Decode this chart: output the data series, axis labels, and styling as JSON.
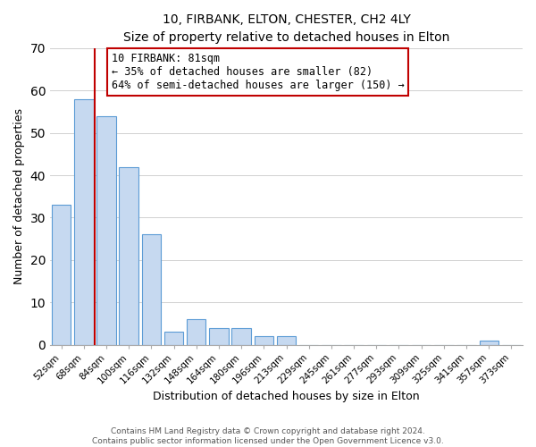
{
  "title": "10, FIRBANK, ELTON, CHESTER, CH2 4LY",
  "subtitle": "Size of property relative to detached houses in Elton",
  "xlabel": "Distribution of detached houses by size in Elton",
  "ylabel": "Number of detached properties",
  "bar_labels": [
    "52sqm",
    "68sqm",
    "84sqm",
    "100sqm",
    "116sqm",
    "132sqm",
    "148sqm",
    "164sqm",
    "180sqm",
    "196sqm",
    "213sqm",
    "229sqm",
    "245sqm",
    "261sqm",
    "277sqm",
    "293sqm",
    "309sqm",
    "325sqm",
    "341sqm",
    "357sqm",
    "373sqm"
  ],
  "bar_heights": [
    33,
    58,
    54,
    42,
    26,
    3,
    6,
    4,
    4,
    2,
    2,
    0,
    0,
    0,
    0,
    0,
    0,
    0,
    0,
    1,
    0
  ],
  "bar_color": "#c6d9f0",
  "bar_edge_color": "#5b9bd5",
  "vline_color": "#c00000",
  "annotation_title": "10 FIRBANK: 81sqm",
  "annotation_line1": "← 35% of detached houses are smaller (82)",
  "annotation_line2": "64% of semi-detached houses are larger (150) →",
  "annotation_box_edge": "#c00000",
  "ylim": [
    0,
    70
  ],
  "yticks": [
    0,
    10,
    20,
    30,
    40,
    50,
    60,
    70
  ],
  "footer1": "Contains HM Land Registry data © Crown copyright and database right 2024.",
  "footer2": "Contains public sector information licensed under the Open Government Licence v3.0.",
  "title_fontsize": 10,
  "subtitle_fontsize": 9,
  "axis_label_fontsize": 9,
  "tick_fontsize": 7.5,
  "annotation_fontsize": 8.5,
  "footer_fontsize": 6.5
}
